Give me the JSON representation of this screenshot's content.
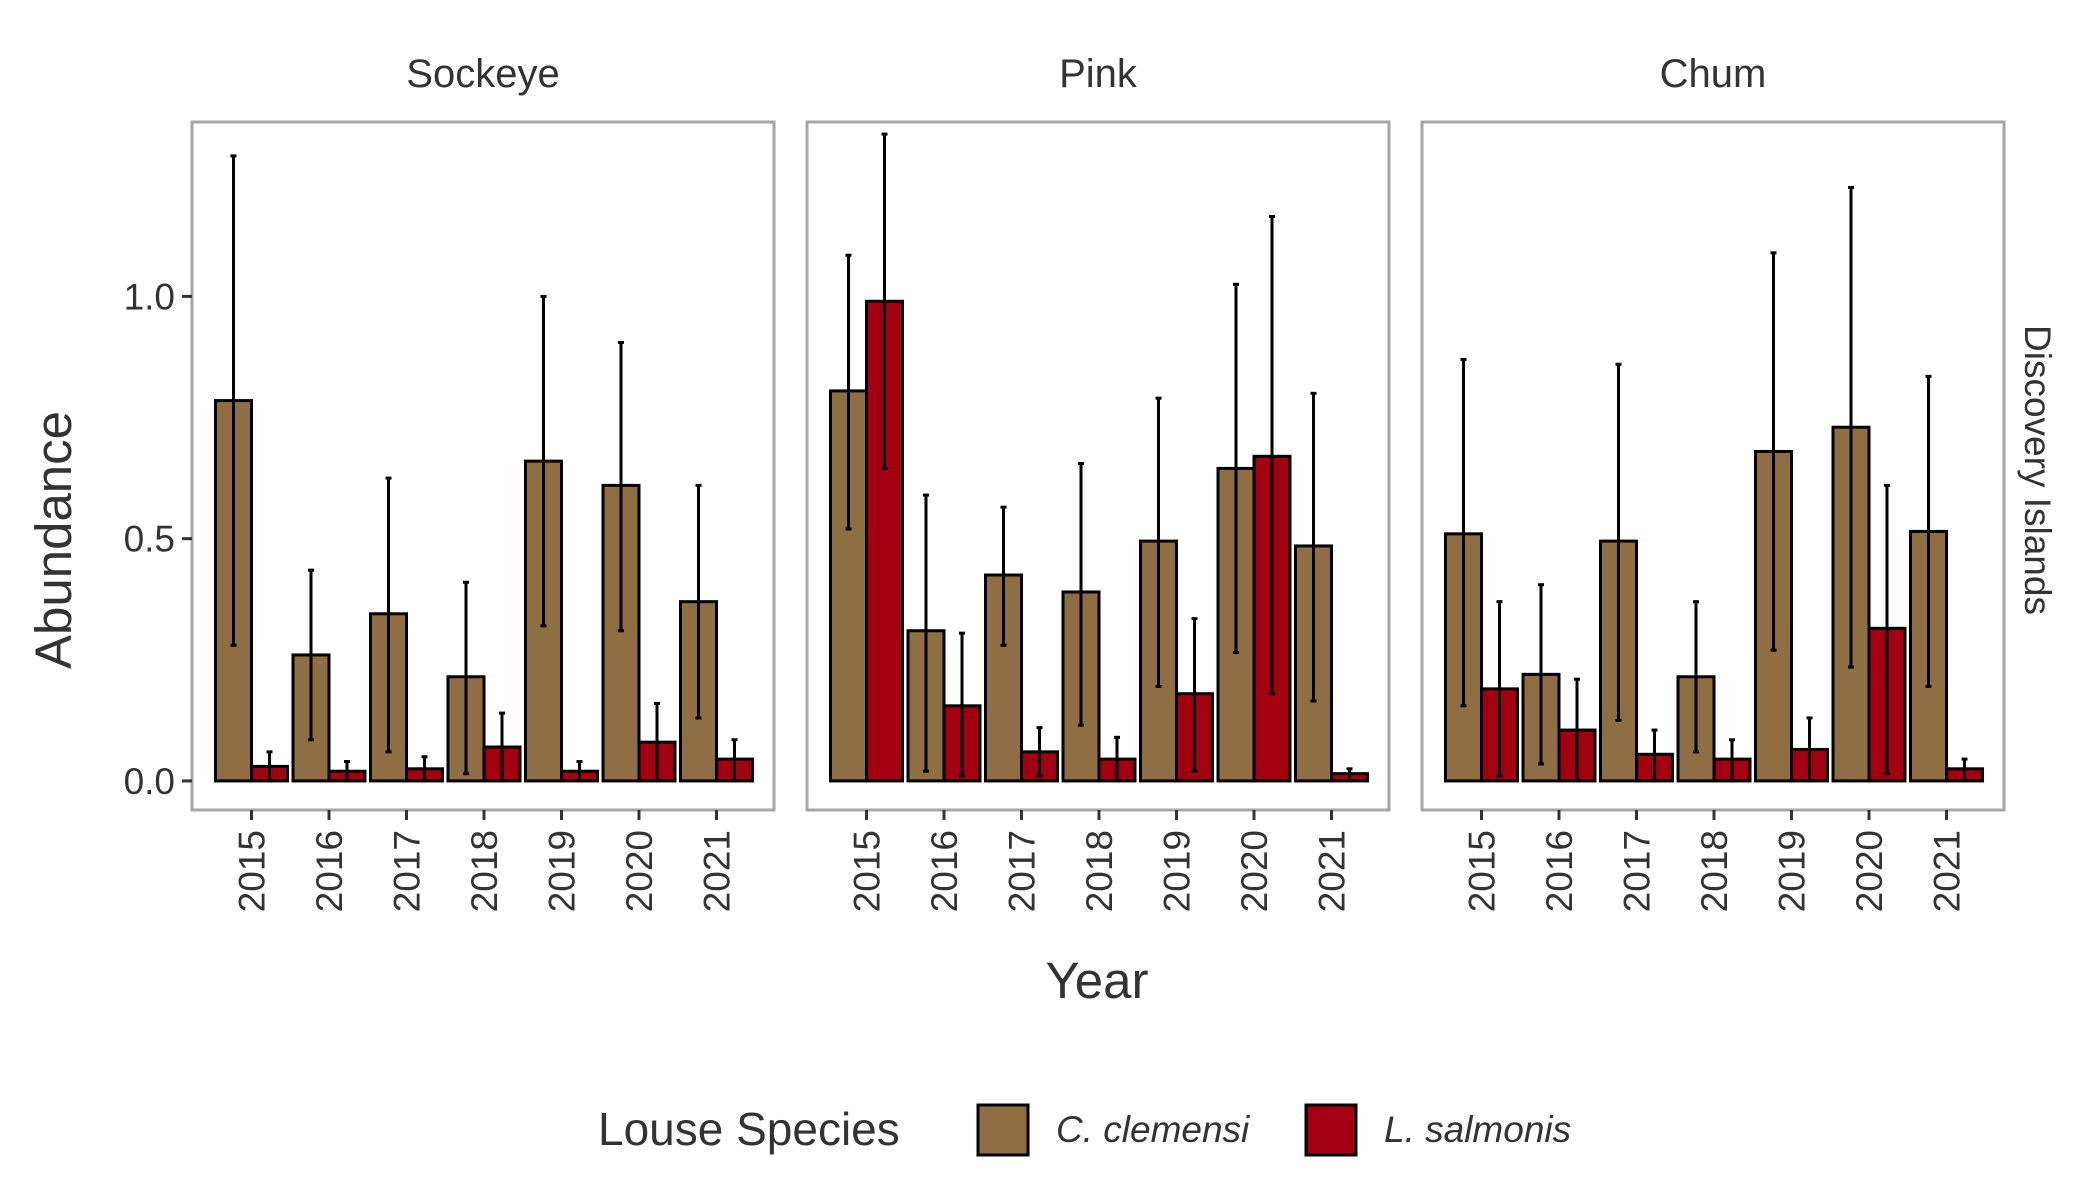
{
  "chart_data": {
    "type": "bar",
    "xlabel": "Year",
    "ylabel": "Abundance",
    "row_strip": "Discovery Islands",
    "categories": [
      "2015",
      "2016",
      "2017",
      "2018",
      "2019",
      "2020",
      "2021"
    ],
    "ylim": [
      -0.06,
      1.36
    ],
    "yticks": [
      0.0,
      0.5,
      1.0
    ],
    "ytick_labels": [
      "0.0",
      "0.5",
      "1.0"
    ],
    "grid": false,
    "legend": {
      "title": "Louse Species",
      "position": "bottom",
      "entries": [
        "C. clemensi",
        "L. salmonis"
      ]
    },
    "series_colors": {
      "C. clemensi": "#8f6e43",
      "L. salmonis": "#a20010"
    },
    "panels": [
      {
        "title": "Sockeye",
        "series": [
          {
            "name": "C. clemensi",
            "values": [
              0.785,
              0.26,
              0.345,
              0.215,
              0.66,
              0.61,
              0.37
            ],
            "lower": [
              0.28,
              0.085,
              0.06,
              0.015,
              0.32,
              0.31,
              0.13
            ],
            "upper": [
              1.29,
              0.435,
              0.625,
              0.41,
              1.0,
              0.905,
              0.61
            ]
          },
          {
            "name": "L. salmonis",
            "values": [
              0.03,
              0.02,
              0.025,
              0.07,
              0.02,
              0.08,
              0.045
            ],
            "lower": [
              0.0,
              0.0,
              0.0,
              0.0,
              0.0,
              0.0,
              0.0
            ],
            "upper": [
              0.06,
              0.04,
              0.05,
              0.14,
              0.04,
              0.16,
              0.085
            ]
          }
        ]
      },
      {
        "title": "Pink",
        "series": [
          {
            "name": "C. clemensi",
            "values": [
              0.805,
              0.31,
              0.425,
              0.39,
              0.495,
              0.645,
              0.485
            ],
            "lower": [
              0.52,
              0.02,
              0.28,
              0.115,
              0.195,
              0.265,
              0.165
            ],
            "upper": [
              1.085,
              0.59,
              0.565,
              0.655,
              0.79,
              1.025,
              0.8
            ]
          },
          {
            "name": "L. salmonis",
            "values": [
              0.99,
              0.155,
              0.06,
              0.045,
              0.18,
              0.67,
              0.015
            ],
            "lower": [
              0.645,
              0.01,
              0.01,
              0.0,
              0.02,
              0.18,
              0.0
            ],
            "upper": [
              1.335,
              0.305,
              0.11,
              0.09,
              0.335,
              1.165,
              0.025
            ]
          }
        ]
      },
      {
        "title": "Chum",
        "series": [
          {
            "name": "C. clemensi",
            "values": [
              0.51,
              0.22,
              0.495,
              0.215,
              0.68,
              0.73,
              0.515
            ],
            "lower": [
              0.155,
              0.035,
              0.125,
              0.06,
              0.27,
              0.235,
              0.195
            ],
            "upper": [
              0.87,
              0.405,
              0.86,
              0.37,
              1.09,
              1.225,
              0.835
            ]
          },
          {
            "name": "L. salmonis",
            "values": [
              0.19,
              0.105,
              0.055,
              0.045,
              0.065,
              0.315,
              0.025
            ],
            "lower": [
              0.01,
              0.0,
              0.0,
              0.0,
              0.0,
              0.015,
              0.0
            ],
            "upper": [
              0.37,
              0.21,
              0.105,
              0.085,
              0.13,
              0.61,
              0.045
            ]
          }
        ]
      }
    ]
  }
}
